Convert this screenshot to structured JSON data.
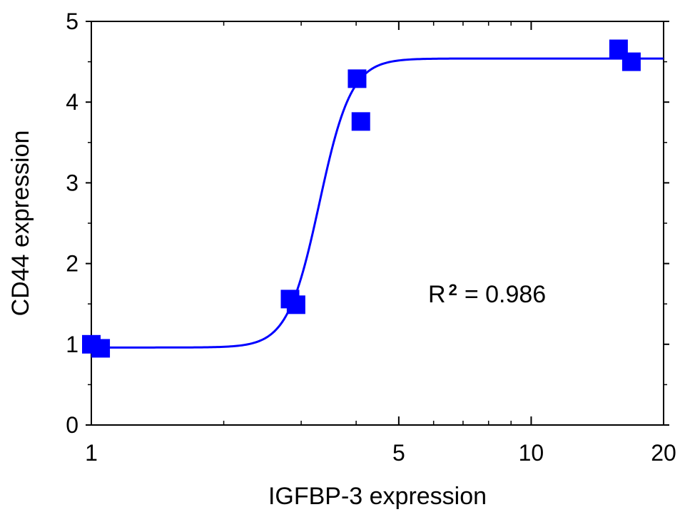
{
  "chart_data": {
    "type": "scatter",
    "xlabel": "IGFBP-3 expression",
    "ylabel": "CD44 expression",
    "x_scale": "log",
    "xlim": [
      1,
      20
    ],
    "ylim": [
      0,
      5
    ],
    "x_ticks": [
      {
        "value": 1,
        "label": "1"
      },
      {
        "value": 5,
        "label": "5"
      },
      {
        "value": 10,
        "label": "10"
      },
      {
        "value": 20,
        "label": "20"
      }
    ],
    "x_minor_ticks": [
      2,
      3,
      4,
      6,
      7,
      8,
      9
    ],
    "y_ticks": [
      {
        "value": 0,
        "label": "0"
      },
      {
        "value": 1,
        "label": "1"
      },
      {
        "value": 2,
        "label": "2"
      },
      {
        "value": 3,
        "label": "3"
      },
      {
        "value": 4,
        "label": "4"
      },
      {
        "value": 5,
        "label": "5"
      }
    ],
    "y_minor_ticks": [
      0.5,
      1.5,
      2.5,
      3.5,
      4.5
    ],
    "grid": false,
    "legend": "none",
    "series": [
      {
        "marker": "square",
        "color": "#0000ff",
        "points": [
          {
            "x": 1.0,
            "y": 1.0
          },
          {
            "x": 1.05,
            "y": 0.95
          },
          {
            "x": 2.83,
            "y": 1.56
          },
          {
            "x": 2.92,
            "y": 1.49
          },
          {
            "x": 4.02,
            "y": 4.29
          },
          {
            "x": 4.1,
            "y": 3.76
          },
          {
            "x": 15.8,
            "y": 4.66
          },
          {
            "x": 16.9,
            "y": 4.5
          }
        ]
      }
    ],
    "fit_curve": {
      "type": "sigmoid",
      "color": "#0000ff",
      "bottom": 0.96,
      "top": 4.54,
      "midpoint_x": 3.3,
      "hill_slope": 12
    },
    "annotation": {
      "base": "R",
      "superscript": "2",
      "text": "= 0.986"
    }
  }
}
